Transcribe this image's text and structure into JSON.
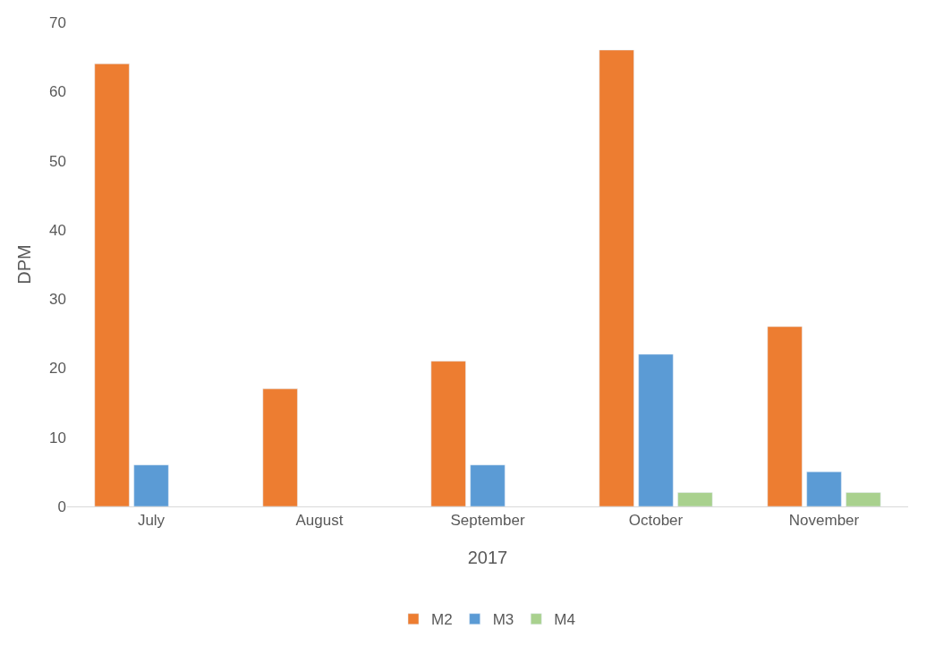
{
  "chart_data": {
    "type": "bar",
    "xlabel": "2017",
    "ylabel": "DPM",
    "categories": [
      "July",
      "August",
      "September",
      "October",
      "November"
    ],
    "series": [
      {
        "name": "M2",
        "color": "#ed7d31",
        "values": [
          64,
          17,
          21,
          66,
          26
        ]
      },
      {
        "name": "M3",
        "color": "#5b9bd5",
        "values": [
          6,
          null,
          6,
          22,
          5
        ]
      },
      {
        "name": "M4",
        "color": "#a9d18e",
        "values": [
          null,
          null,
          null,
          2,
          2
        ]
      }
    ],
    "ylim": [
      0,
      70
    ],
    "yticks": [
      0,
      10,
      20,
      30,
      40,
      50,
      60,
      70
    ],
    "grid": false,
    "legend": "bottom"
  }
}
